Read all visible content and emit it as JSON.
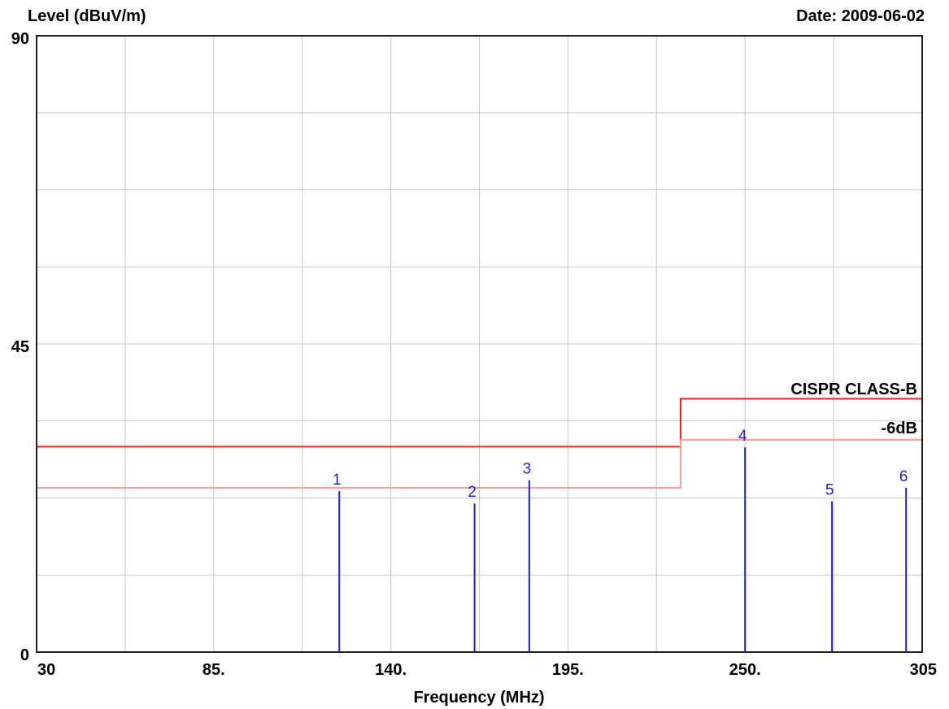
{
  "chart_data": {
    "type": "line",
    "ylabel": "Level (dBuV/m)",
    "xlabel": "Frequency (MHz)",
    "date_text": "Date: 2009-06-02",
    "xlim": [
      30,
      305
    ],
    "ylim": [
      0,
      90
    ],
    "x_tick_labels": [
      "30",
      "85.",
      "140.",
      "195.",
      "250.",
      "305"
    ],
    "x_tick_values": [
      30,
      85,
      140,
      195,
      250,
      305
    ],
    "y_tick_labels": [
      "0",
      "45",
      "90"
    ],
    "y_tick_values": [
      0,
      45,
      90
    ],
    "grid": true,
    "series": [
      {
        "name": "CISPR CLASS-B",
        "color": "#ff2020",
        "x": [
          30,
          230,
          230,
          305
        ],
        "y": [
          30,
          30,
          37,
          37
        ]
      },
      {
        "name": "-6dB",
        "color": "#ff9a9a",
        "x": [
          30,
          230,
          230,
          305
        ],
        "y": [
          24,
          24,
          31,
          31
        ]
      }
    ],
    "markers": {
      "color": "#1a1aff",
      "points": [
        {
          "label": "1",
          "x": 124,
          "y": 23.5
        },
        {
          "label": "2",
          "x": 166,
          "y": 21.7
        },
        {
          "label": "3",
          "x": 183,
          "y": 25.1
        },
        {
          "label": "4",
          "x": 250,
          "y": 29.9
        },
        {
          "label": "5",
          "x": 277,
          "y": 22.0
        },
        {
          "label": "6",
          "x": 300,
          "y": 24.0
        }
      ]
    }
  }
}
